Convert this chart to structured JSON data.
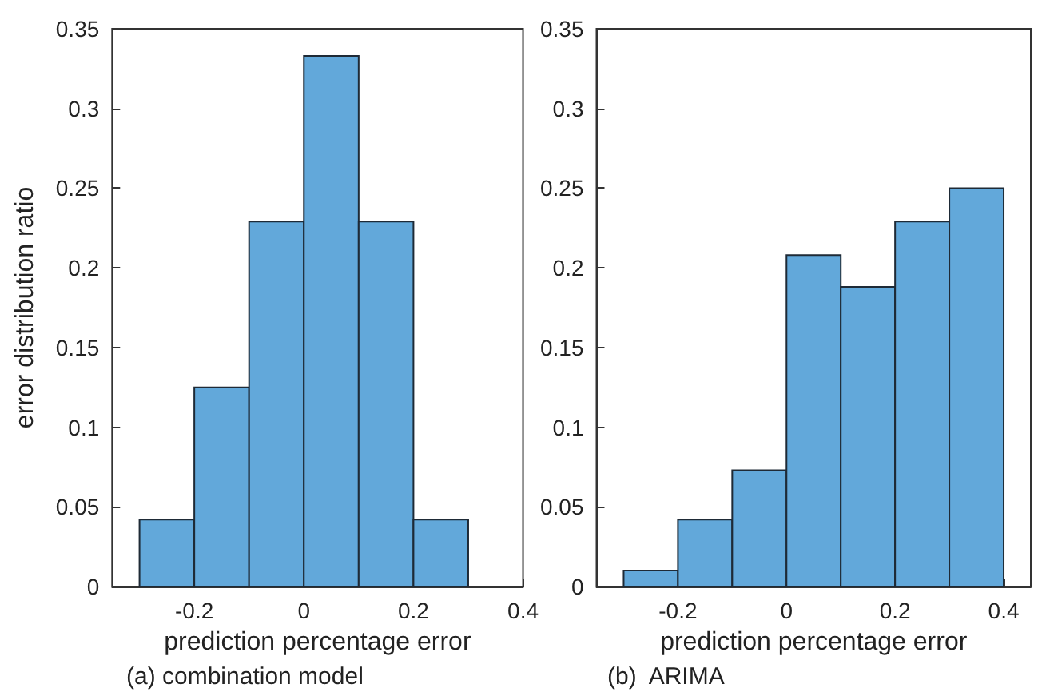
{
  "chart_data": [
    {
      "type": "histogram",
      "title": "(a) combination model",
      "xlabel": "prediction percentage error",
      "ylabel": "error distribution ratio",
      "bins": [
        -0.3,
        -0.2,
        -0.1,
        0,
        0.1,
        0.2,
        0.3
      ],
      "values": [
        0.042,
        0.125,
        0.229,
        0.333,
        0.229,
        0.042
      ],
      "color": "#62a8da",
      "xlim": [
        -0.35,
        0.4
      ],
      "xticks": [
        -0.2,
        0,
        0.2,
        0.4
      ],
      "ylim": [
        0,
        0.35
      ],
      "yticks": [
        0,
        0.05,
        0.1,
        0.15,
        0.2,
        0.25,
        0.3,
        0.35
      ]
    },
    {
      "type": "histogram",
      "title": "(b)  ARIMA",
      "xlabel": "prediction percentage error",
      "bins": [
        -0.3,
        -0.2,
        -0.1,
        0,
        0.1,
        0.2,
        0.3,
        0.4
      ],
      "values": [
        0.01,
        0.042,
        0.073,
        0.208,
        0.188,
        0.229,
        0.25
      ],
      "color": "#62a8da",
      "xlim": [
        -0.35,
        0.45
      ],
      "xticks": [
        -0.2,
        0,
        0.2,
        0.4
      ],
      "ylim": [
        0,
        0.35
      ],
      "yticks": [
        0,
        0.05,
        0.1,
        0.15,
        0.2,
        0.25,
        0.3,
        0.35
      ]
    }
  ]
}
